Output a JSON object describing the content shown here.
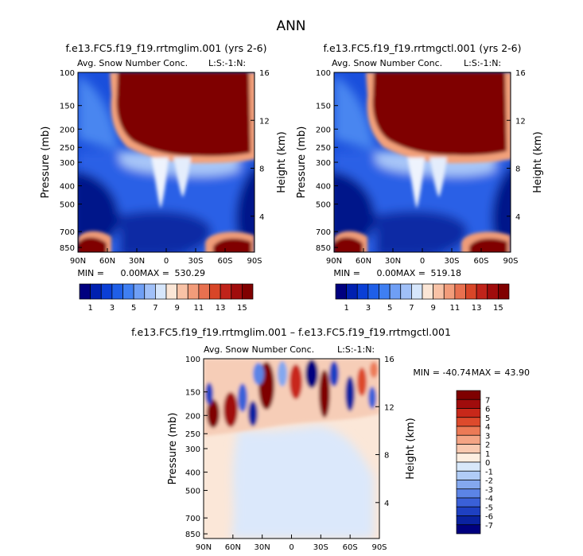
{
  "figure_title": "ANN",
  "chart_data": [
    {
      "type": "heatmap",
      "title": "f.e13.FC5.f19_f19.rrtmglim.001 (yrs 2-6)",
      "subtitle": "Avg. Snow Number Conc.",
      "code": "L:S:-1:N:",
      "xlabel": "",
      "ylabel": "Pressure (mb)",
      "ylabel_right": "Height (km)",
      "x_ticks": [
        "90N",
        "60N",
        "30N",
        "0",
        "30S",
        "60S",
        "90S"
      ],
      "y_ticks": [
        100,
        150,
        200,
        250,
        300,
        400,
        500,
        700,
        850
      ],
      "y2_ticks": [
        16,
        12,
        8,
        4
      ],
      "ylim": [
        100,
        900
      ],
      "min_label": "MIN =",
      "min_value": "0.00",
      "max_label": "MAX =",
      "max_value": "530.29",
      "colorbar_ticks": [
        1,
        3,
        5,
        7,
        9,
        11,
        13,
        15
      ],
      "colorbar_levels": 16
    },
    {
      "type": "heatmap",
      "title": "f.e13.FC5.f19_f19.rrtmgctl.001 (yrs 2-6)",
      "subtitle": "Avg. Snow Number Conc.",
      "code": "L:S:-1:N:",
      "xlabel": "",
      "ylabel": "Pressure (mb)",
      "ylabel_right": "Height (km)",
      "x_ticks": [
        "90N",
        "60N",
        "30N",
        "0",
        "30S",
        "60S",
        "90S"
      ],
      "y_ticks": [
        100,
        150,
        200,
        250,
        300,
        400,
        500,
        700,
        850
      ],
      "y2_ticks": [
        16,
        12,
        8,
        4
      ],
      "ylim": [
        100,
        900
      ],
      "min_label": "MIN =",
      "min_value": "0.00",
      "max_label": "MAX =",
      "max_value": "519.18",
      "colorbar_ticks": [
        1,
        3,
        5,
        7,
        9,
        11,
        13,
        15
      ],
      "colorbar_levels": 16
    },
    {
      "type": "heatmap",
      "title": "f.e13.FC5.f19_f19.rrtmglim.001 – f.e13.FC5.f19_f19.rrtmgctl.001",
      "subtitle": "Avg. Snow Number Conc.",
      "code": "L:S:-1:N:",
      "xlabel": "",
      "ylabel": "Pressure (mb)",
      "ylabel_right": "Height (km)",
      "x_ticks": [
        "90N",
        "60N",
        "30N",
        "0",
        "30S",
        "60S",
        "90S"
      ],
      "y_ticks": [
        100,
        150,
        200,
        250,
        300,
        400,
        500,
        700,
        850
      ],
      "y2_ticks": [
        16,
        12,
        8,
        4
      ],
      "ylim": [
        100,
        900
      ],
      "min_label": "MIN =",
      "min_value": "-40.74",
      "max_label": "MAX =",
      "max_value": "43.90",
      "colorbar_ticks": [
        7,
        6,
        5,
        4,
        3,
        2,
        1,
        0,
        -1,
        -2,
        -3,
        -4,
        -5,
        -6,
        -7
      ],
      "colorbar_levels": 16
    }
  ],
  "palettes": {
    "abs": [
      "#00007f",
      "#0020b0",
      "#0a3fd6",
      "#1f5fe8",
      "#3f7ff2",
      "#6f9ff5",
      "#a0c0f8",
      "#d6e6fb",
      "#fbe6d6",
      "#f8c2a6",
      "#f29c7a",
      "#e8704f",
      "#d84628",
      "#c0231a",
      "#a00c0c",
      "#800000"
    ],
    "diff": [
      "#7f0000",
      "#a00c0c",
      "#c8281a",
      "#dd4a2c",
      "#ec7a56",
      "#f4a484",
      "#f9c9b0",
      "#fdeee0",
      "#d8e8fa",
      "#b0ccf6",
      "#84a8ef",
      "#5c84e6",
      "#3a60d8",
      "#1e40c2",
      "#0a22a0",
      "#00007f"
    ]
  }
}
